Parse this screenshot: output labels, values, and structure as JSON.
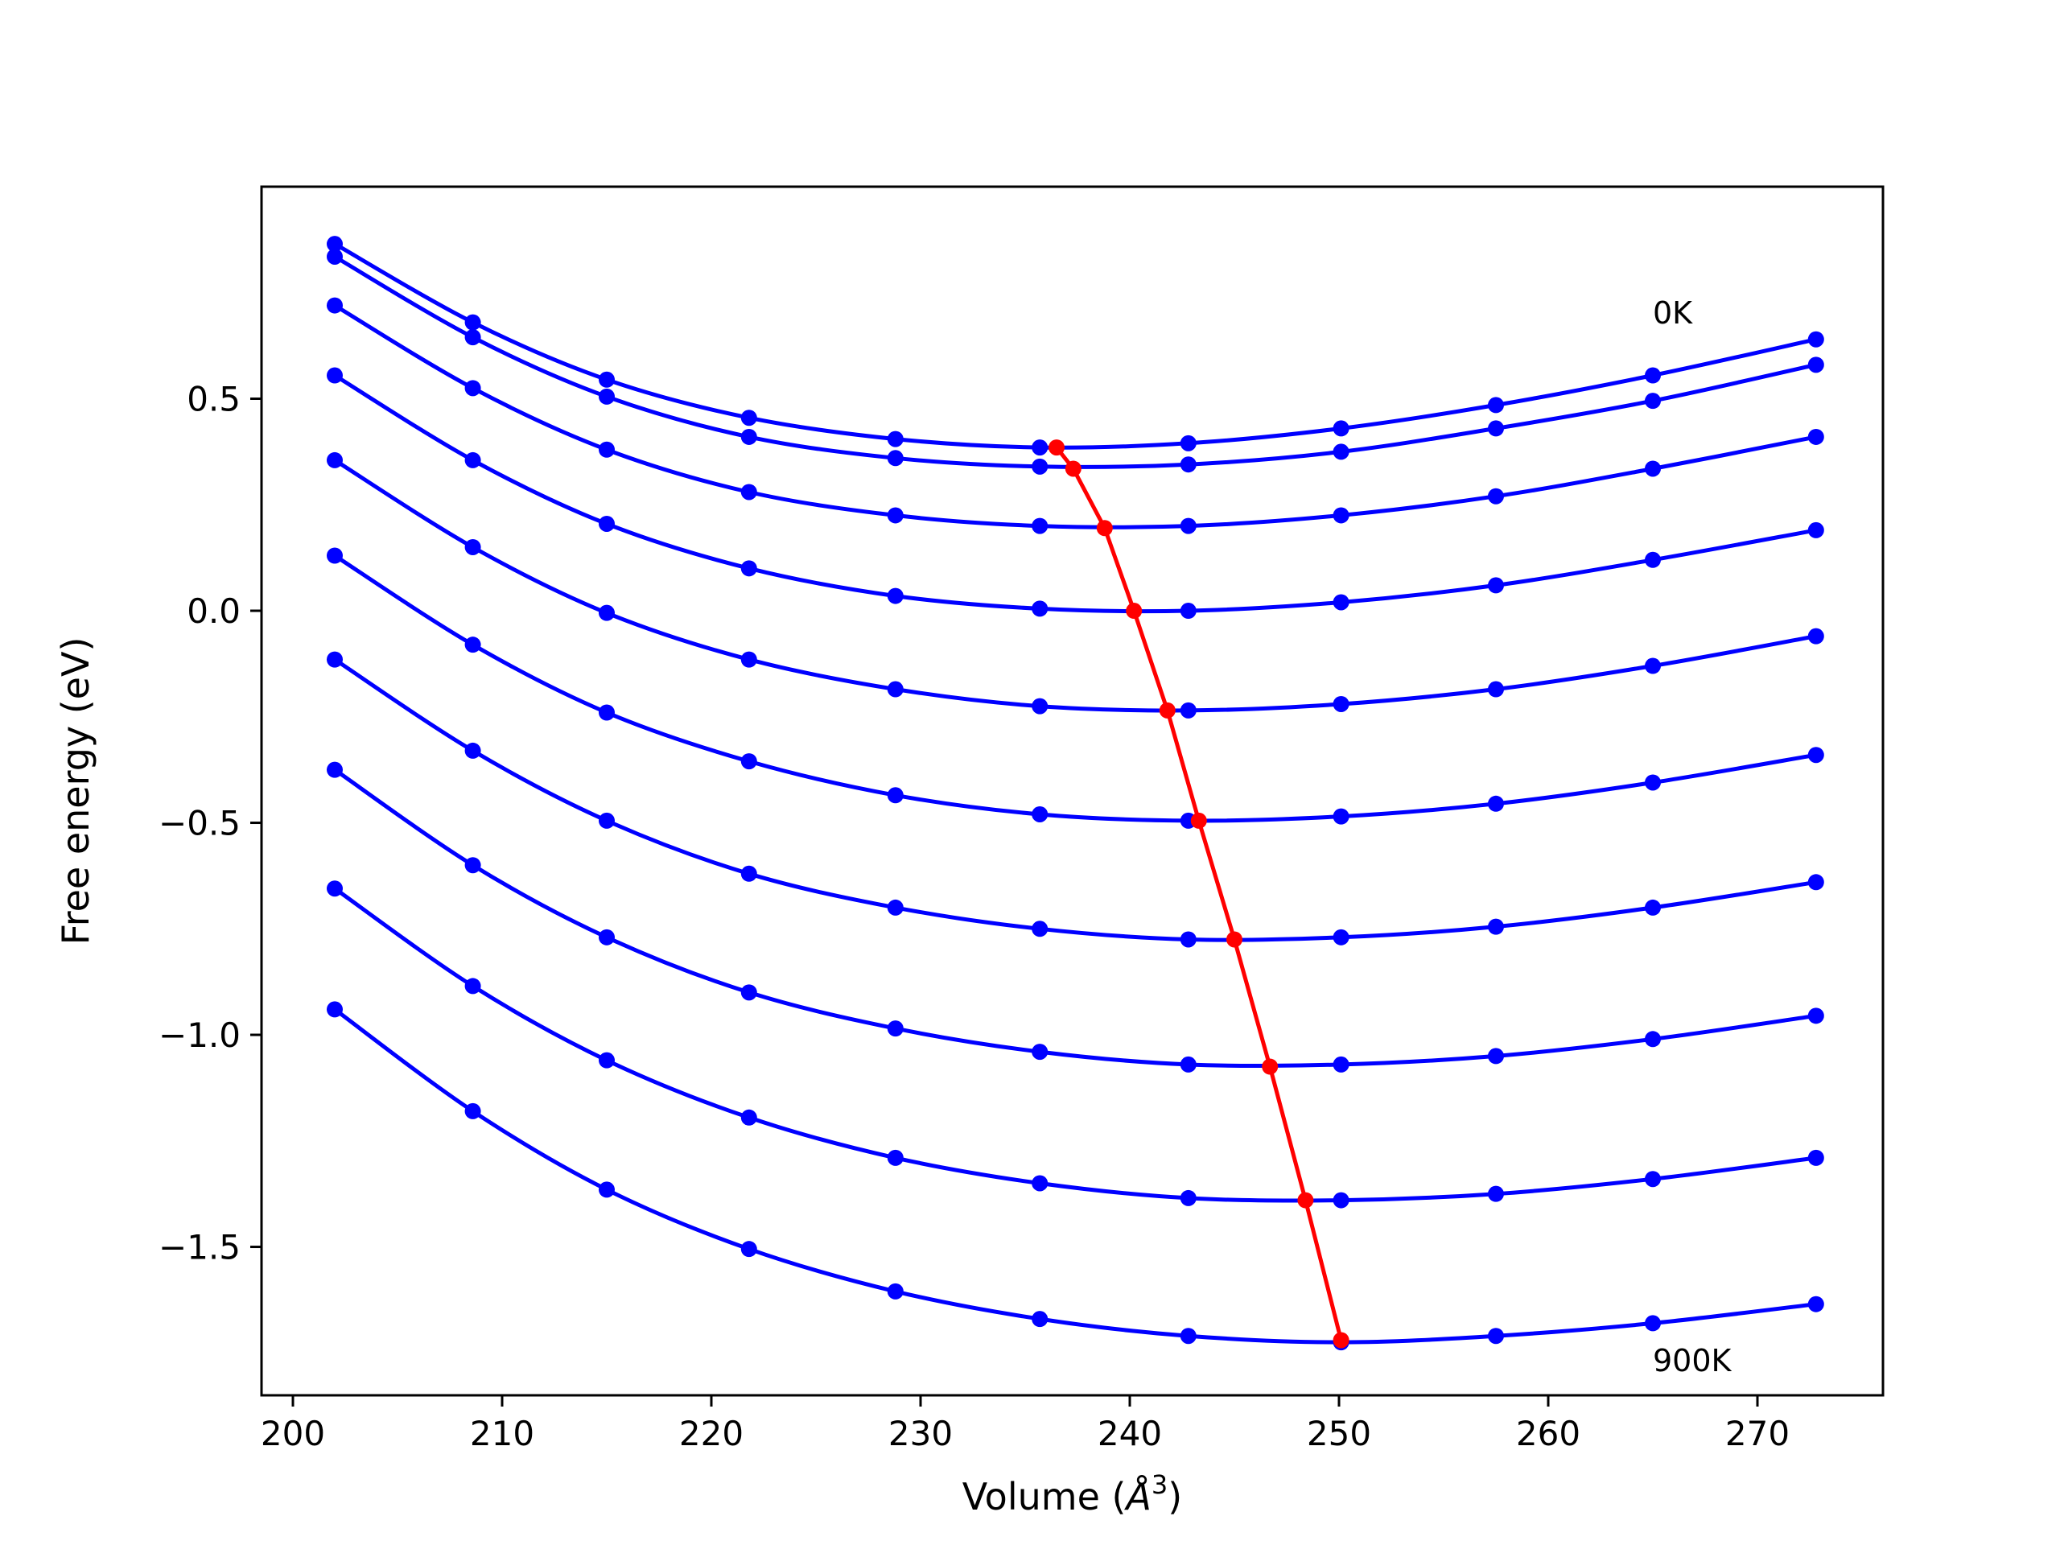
{
  "chart_data": {
    "type": "line",
    "title": "",
    "xlabel": "Volume (",
    "xlabel_symbol": "Å",
    "xlabel_exponent": "3",
    "xlabel_close": ")",
    "ylabel": "Free energy (eV)",
    "xlim": [
      198.5,
      276.0
    ],
    "ylim": [
      -1.85,
      1.0
    ],
    "xticks": [
      200,
      210,
      220,
      230,
      240,
      250,
      260,
      270
    ],
    "xtick_labels": [
      "200",
      "210",
      "220",
      "230",
      "240",
      "250",
      "260",
      "270"
    ],
    "yticks": [
      0.5,
      0.0,
      -0.5,
      -1.0,
      -1.5
    ],
    "ytick_labels": [
      "0.5",
      "0.0",
      "−0.5",
      "−1.0",
      "−1.5"
    ],
    "grid": false,
    "x": [
      202.0,
      208.6,
      215.0,
      221.8,
      228.8,
      235.7,
      242.8,
      250.1,
      257.5,
      265.0,
      272.8
    ],
    "series": [
      {
        "values": [
          0.865,
          0.68,
          0.545,
          0.455,
          0.405,
          0.385,
          0.395,
          0.43,
          0.485,
          0.555,
          0.64
        ]
      },
      {
        "values": [
          0.835,
          0.645,
          0.505,
          0.41,
          0.36,
          0.34,
          0.345,
          0.375,
          0.43,
          0.495,
          0.58
        ]
      },
      {
        "values": [
          0.72,
          0.525,
          0.38,
          0.28,
          0.225,
          0.2,
          0.2,
          0.225,
          0.27,
          0.335,
          0.41
        ]
      },
      {
        "values": [
          0.555,
          0.355,
          0.205,
          0.1,
          0.035,
          0.005,
          0.0,
          0.02,
          0.06,
          0.12,
          0.19
        ]
      },
      {
        "values": [
          0.355,
          0.15,
          -0.005,
          -0.115,
          -0.185,
          -0.225,
          -0.235,
          -0.22,
          -0.185,
          -0.13,
          -0.06
        ]
      },
      {
        "values": [
          0.13,
          -0.08,
          -0.24,
          -0.355,
          -0.435,
          -0.48,
          -0.495,
          -0.485,
          -0.455,
          -0.405,
          -0.34
        ]
      },
      {
        "values": [
          -0.115,
          -0.33,
          -0.495,
          -0.62,
          -0.7,
          -0.75,
          -0.775,
          -0.77,
          -0.745,
          -0.7,
          -0.64
        ]
      },
      {
        "values": [
          -0.375,
          -0.6,
          -0.77,
          -0.9,
          -0.985,
          -1.04,
          -1.07,
          -1.07,
          -1.05,
          -1.01,
          -0.955
        ]
      },
      {
        "values": [
          -0.655,
          -0.885,
          -1.06,
          -1.195,
          -1.29,
          -1.35,
          -1.385,
          -1.39,
          -1.375,
          -1.34,
          -1.29
        ]
      },
      {
        "values": [
          -0.94,
          -1.18,
          -1.365,
          -1.505,
          -1.605,
          -1.67,
          -1.71,
          -1.725,
          -1.71,
          -1.68,
          -1.635
        ]
      }
    ],
    "minima_path": {
      "x": [
        236.5,
        237.3,
        238.8,
        240.2,
        241.8,
        243.3,
        245.0,
        246.7,
        248.4,
        250.1
      ],
      "y": [
        0.385,
        0.335,
        0.195,
        0.0,
        -0.235,
        -0.495,
        -0.775,
        -1.075,
        -1.39,
        -1.72
      ]
    },
    "annotations": [
      {
        "text": "0K",
        "x": 265.0,
        "y": 0.7
      },
      {
        "text": "900K",
        "x": 265.0,
        "y": -1.77
      }
    ],
    "colors": {
      "curves": "#0000ff",
      "minima_path": "#ff0000",
      "axes": "#000000"
    }
  }
}
